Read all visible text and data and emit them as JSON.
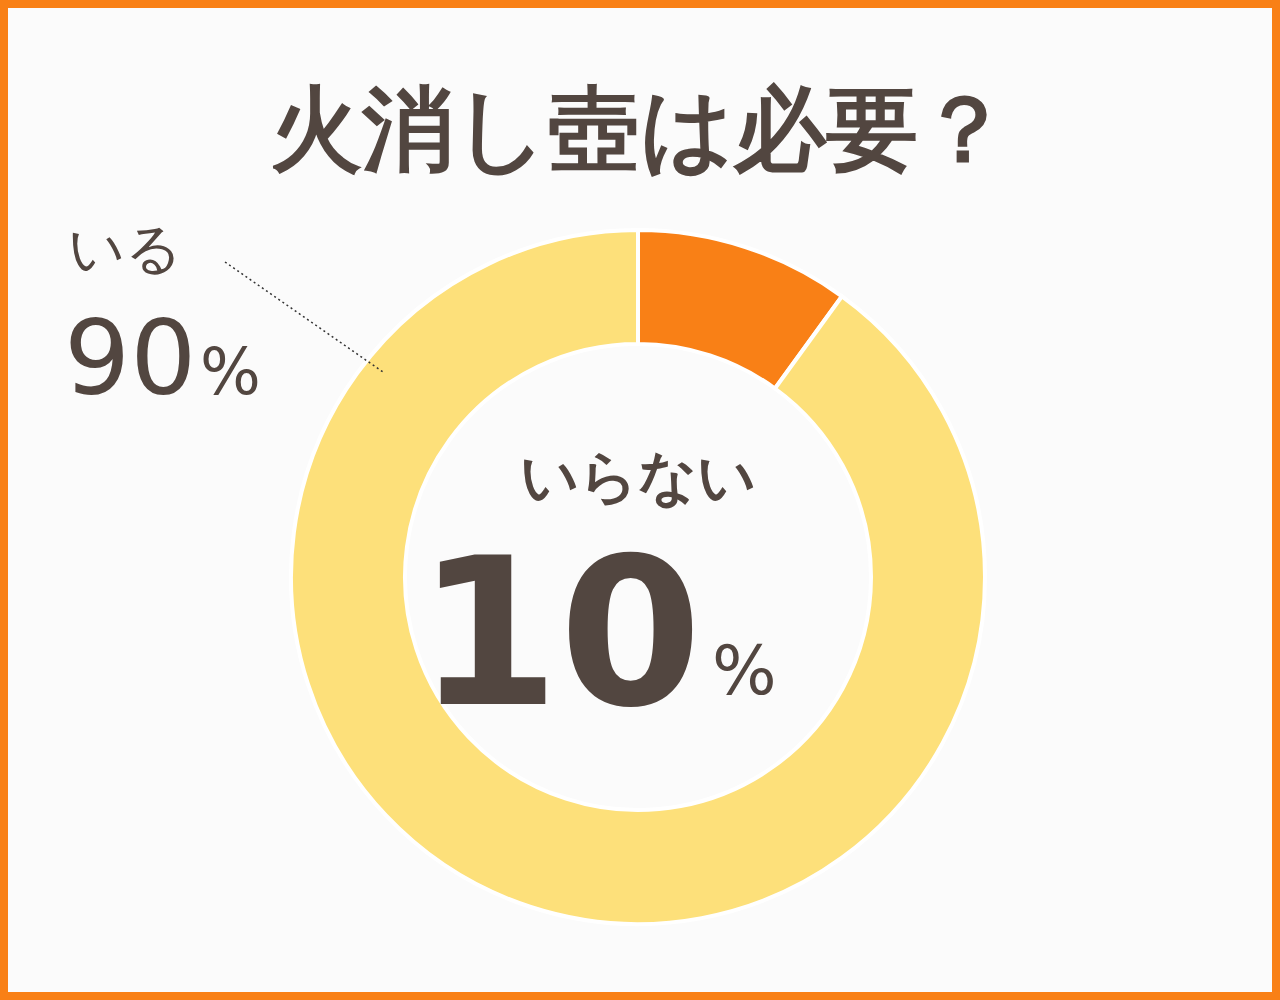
{
  "chart_data": {
    "type": "donut",
    "title": "火消し壺は必要？",
    "categories": [
      "いらない",
      "いる"
    ],
    "values": [
      10,
      90
    ],
    "colors": [
      "#f98016",
      "#fde07a"
    ],
    "value_labels": [
      "10%",
      "90%"
    ]
  }
}
